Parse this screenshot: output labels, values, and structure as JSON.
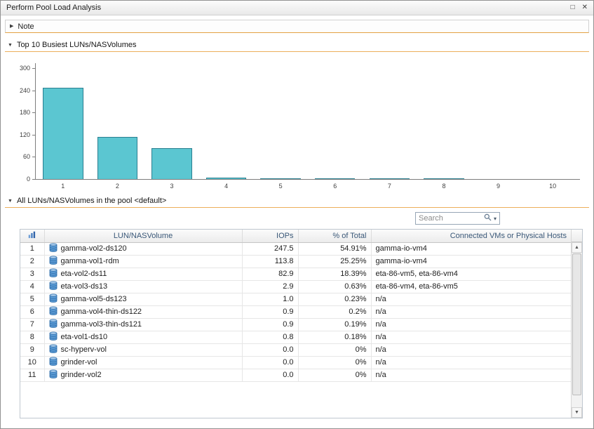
{
  "window": {
    "title": "Perform Pool Load Analysis",
    "restore_glyph": "□",
    "close_glyph": "✕"
  },
  "icons": {
    "collapsed_arrow": "▶",
    "expanded_arrow": "▼",
    "scroll_up": "▲",
    "scroll_down": "▼",
    "search_caret": "▾"
  },
  "note_section": {
    "label": "Note"
  },
  "chart_section": {
    "label": "Top 10 Busiest LUNs/NASVolumes"
  },
  "pool_section": {
    "label": "All LUNs/NASVolumes in the pool <default>"
  },
  "search": {
    "placeholder": "Search"
  },
  "chart_data": {
    "type": "bar",
    "title": "Top 10 Busiest LUNs/NASVolumes",
    "categories": [
      "1",
      "2",
      "3",
      "4",
      "5",
      "6",
      "7",
      "8",
      "9",
      "10"
    ],
    "values": [
      247.5,
      113.8,
      82.9,
      2.9,
      1.0,
      0.9,
      0.9,
      0.8,
      0.0,
      0.0
    ],
    "xlabel": "",
    "ylabel": "",
    "ylim": [
      0,
      300
    ],
    "yticks": [
      0,
      60,
      120,
      180,
      240,
      300
    ],
    "grid": false,
    "legend": false,
    "bar_color": "#5BC6D1",
    "bar_border": "#2B7F90"
  },
  "table": {
    "columns": {
      "name": "LUN/NASVolume",
      "iops": "IOPs",
      "pct": "% of Total",
      "vms": "Connected VMs or Physical Hosts"
    },
    "rows": [
      {
        "rank": "1",
        "name": "gamma-vol2-ds120",
        "iops": "247.5",
        "pct": "54.91%",
        "vms": "gamma-io-vm4"
      },
      {
        "rank": "2",
        "name": "gamma-vol1-rdm",
        "iops": "113.8",
        "pct": "25.25%",
        "vms": "gamma-io-vm4"
      },
      {
        "rank": "3",
        "name": "eta-vol2-ds11",
        "iops": "82.9",
        "pct": "18.39%",
        "vms": "eta-86-vm5, eta-86-vm4"
      },
      {
        "rank": "4",
        "name": "eta-vol3-ds13",
        "iops": "2.9",
        "pct": "0.63%",
        "vms": "eta-86-vm4, eta-86-vm5"
      },
      {
        "rank": "5",
        "name": "gamma-vol5-ds123",
        "iops": "1.0",
        "pct": "0.23%",
        "vms": "n/a"
      },
      {
        "rank": "6",
        "name": "gamma-vol4-thin-ds122",
        "iops": "0.9",
        "pct": "0.2%",
        "vms": "n/a"
      },
      {
        "rank": "7",
        "name": "gamma-vol3-thin-ds121",
        "iops": "0.9",
        "pct": "0.19%",
        "vms": "n/a"
      },
      {
        "rank": "8",
        "name": "eta-vol1-ds10",
        "iops": "0.8",
        "pct": "0.18%",
        "vms": "n/a"
      },
      {
        "rank": "9",
        "name": "sc-hyperv-vol",
        "iops": "0.0",
        "pct": "0%",
        "vms": "n/a"
      },
      {
        "rank": "10",
        "name": "grinder-vol",
        "iops": "0.0",
        "pct": "0%",
        "vms": "n/a"
      },
      {
        "rank": "11",
        "name": "grinder-vol2",
        "iops": "0.0",
        "pct": "0%",
        "vms": "n/a"
      }
    ]
  }
}
